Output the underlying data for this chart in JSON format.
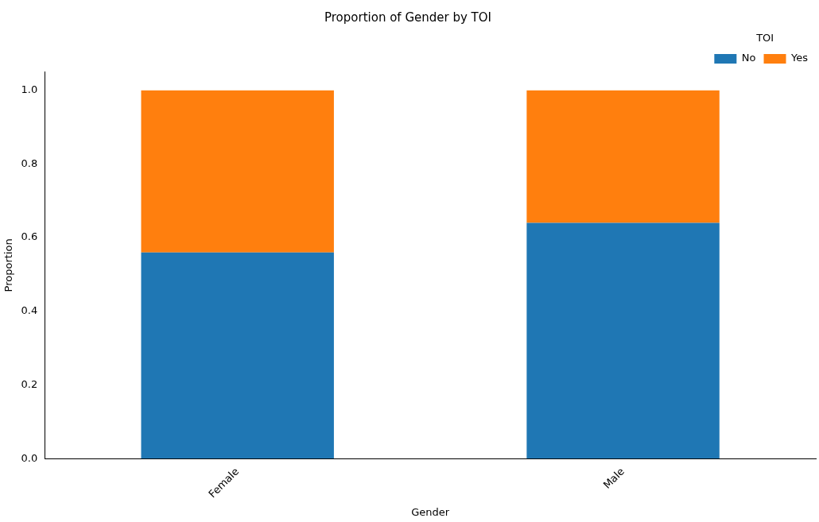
{
  "chart_data": {
    "type": "bar",
    "title": "Proportion of Gender by TOI",
    "xlabel": "Gender",
    "ylabel": "Proportion",
    "legend_title": "TOI",
    "categories": [
      "Female",
      "Male"
    ],
    "series": [
      {
        "name": "No",
        "color": "#1f77b4",
        "values": [
          0.56,
          0.64
        ]
      },
      {
        "name": "Yes",
        "color": "#ff7f0e",
        "values": [
          0.44,
          0.36
        ]
      }
    ],
    "stacked": true,
    "ylim": [
      0,
      1.05
    ],
    "yticks": [
      {
        "value": 0,
        "label": "0.0"
      },
      {
        "value": 0.2,
        "label": "0.2"
      },
      {
        "value": 0.4,
        "label": "0.4"
      },
      {
        "value": 0.6,
        "label": "0.6"
      },
      {
        "value": 0.8,
        "label": "0.8"
      },
      {
        "value": 1,
        "label": "1.0"
      }
    ],
    "grid": false,
    "legend": "top right"
  }
}
